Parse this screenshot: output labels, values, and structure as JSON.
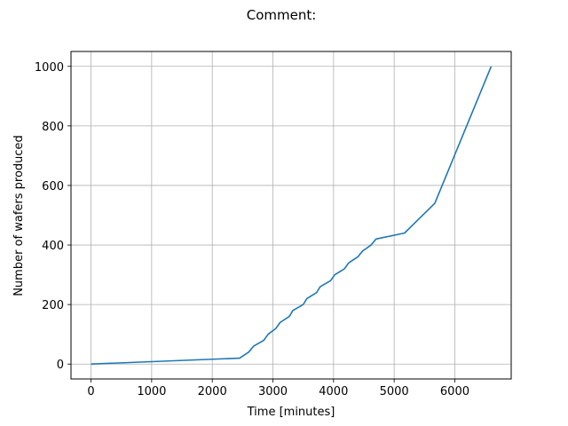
{
  "chart_data": {
    "type": "line",
    "title": "Comment:",
    "xlabel": "Time [minutes]",
    "ylabel": "Number of wafers produced",
    "xlim": [
      -330,
      6930
    ],
    "ylim": [
      -50,
      1050
    ],
    "xticks": [
      0,
      1000,
      2000,
      3000,
      4000,
      5000,
      6000
    ],
    "yticks": [
      0,
      200,
      400,
      600,
      800,
      1000
    ],
    "grid": true,
    "colors": {
      "line": "#1f77b4",
      "grid": "#b0b0b0"
    },
    "series": [
      {
        "x": [
          0,
          2450,
          2600,
          2680,
          2850,
          2920,
          3050,
          3120,
          3270,
          3330,
          3500,
          3560,
          3720,
          3780,
          3950,
          4020,
          4180,
          4250,
          4400,
          4480,
          4620,
          4700,
          5170,
          5670,
          6600
        ],
        "y": [
          0,
          20,
          40,
          60,
          80,
          100,
          120,
          140,
          160,
          180,
          200,
          220,
          240,
          260,
          280,
          300,
          320,
          340,
          360,
          380,
          400,
          420,
          440,
          540,
          1000
        ]
      }
    ]
  }
}
